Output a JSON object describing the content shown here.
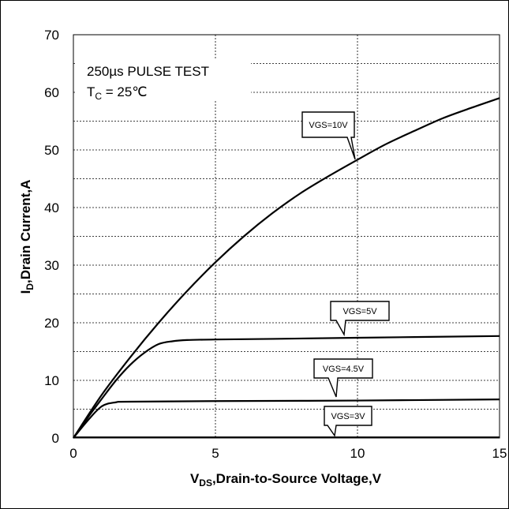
{
  "chart_data": {
    "type": "line",
    "x_axis": {
      "label_main": "V",
      "label_sub": "DS",
      "label_rest": ",Drain-to-Source Voltage,V",
      "range": [
        0,
        15
      ],
      "ticks": [
        0,
        5,
        10,
        15
      ]
    },
    "y_axis": {
      "label_main": "I",
      "label_sub": "D",
      "label_rest": ",Drain Current,A",
      "range": [
        0,
        70
      ],
      "ticks": [
        0,
        10,
        20,
        30,
        40,
        50,
        60,
        70
      ],
      "minor_step": 5
    },
    "grid": true,
    "annotations": {
      "line1": "250µs PULSE TEST",
      "line2_main": "T",
      "line2_sub": "C",
      "line2_rest": " = 25℃"
    },
    "series": [
      {
        "name": "VGS=10V",
        "x": [
          0,
          1,
          2,
          3,
          4,
          5,
          6,
          7,
          8,
          9,
          10,
          11,
          12,
          13,
          14,
          15
        ],
        "y": [
          0,
          7.5,
          14,
          20,
          25.5,
          30.5,
          35,
          39,
          42.5,
          45.5,
          48.3,
          51,
          53.3,
          55.5,
          57.3,
          59
        ]
      },
      {
        "name": "VGS=5V",
        "x": [
          0,
          0.5,
          1,
          1.5,
          2,
          2.5,
          3,
          3.5,
          4,
          5,
          7,
          10,
          15
        ],
        "y": [
          0,
          3.5,
          6.8,
          10,
          12.7,
          14.8,
          16.3,
          16.8,
          17,
          17.1,
          17.2,
          17.4,
          17.7
        ]
      },
      {
        "name": "VGS=4.5V",
        "x": [
          0,
          0.5,
          1,
          1.5,
          2,
          5,
          10,
          15
        ],
        "y": [
          0,
          3,
          5.5,
          6.2,
          6.3,
          6.4,
          6.5,
          6.7
        ]
      },
      {
        "name": "VGS=3V",
        "x": [
          0,
          5,
          10,
          15
        ],
        "y": [
          0.1,
          0.1,
          0.1,
          0.1
        ]
      }
    ]
  }
}
